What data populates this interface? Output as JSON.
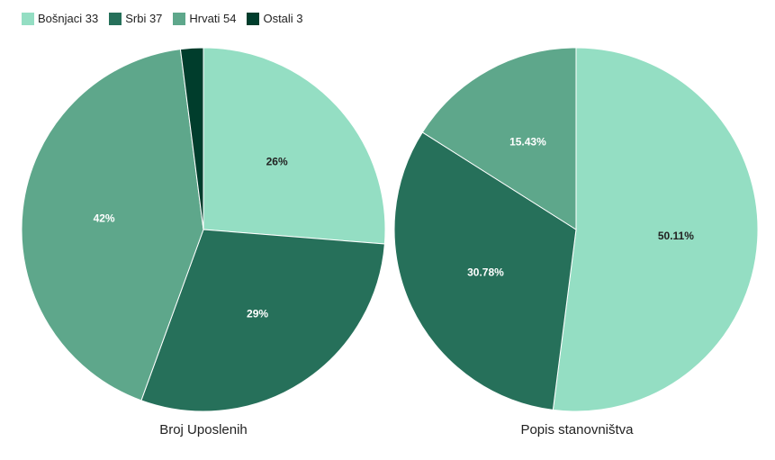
{
  "chart_data": [
    {
      "type": "pie",
      "title": "Broj Uposlenih",
      "labels": [
        "Bošnjaci 33",
        "Srbi 37",
        "Hrvati 54",
        "Ostali 3"
      ],
      "values": [
        26,
        29,
        42,
        2
      ],
      "value_labels": [
        "26%",
        "29%",
        "42%",
        ""
      ],
      "colors": [
        "#94dec3",
        "#26705a",
        "#5ea78b",
        "#003d2c"
      ],
      "label_colors": [
        "#222222",
        "#ffffff",
        "#ffffff",
        "#ffffff"
      ],
      "legend_position": "top-left"
    },
    {
      "type": "pie",
      "title": "Popis stanovništva",
      "labels": [
        "Bošnjaci 33",
        "Srbi 37",
        "Hrvati 54",
        "Ostali 3"
      ],
      "values": [
        50.11,
        30.78,
        15.43,
        0
      ],
      "value_labels": [
        "50.11%",
        "30.78%",
        "15.43%",
        ""
      ],
      "colors": [
        "#94dec3",
        "#26705a",
        "#5ea78b",
        "#003d2c"
      ],
      "label_colors": [
        "#222222",
        "#ffffff",
        "#ffffff",
        "#ffffff"
      ],
      "legend_position": "top-left"
    }
  ],
  "legend": {
    "items": [
      {
        "label": "Bošnjaci 33",
        "color": "#94dec3"
      },
      {
        "label": "Srbi 37",
        "color": "#26705a"
      },
      {
        "label": "Hrvati 54",
        "color": "#5ea78b"
      },
      {
        "label": "Ostali 3",
        "color": "#003d2c"
      }
    ]
  }
}
